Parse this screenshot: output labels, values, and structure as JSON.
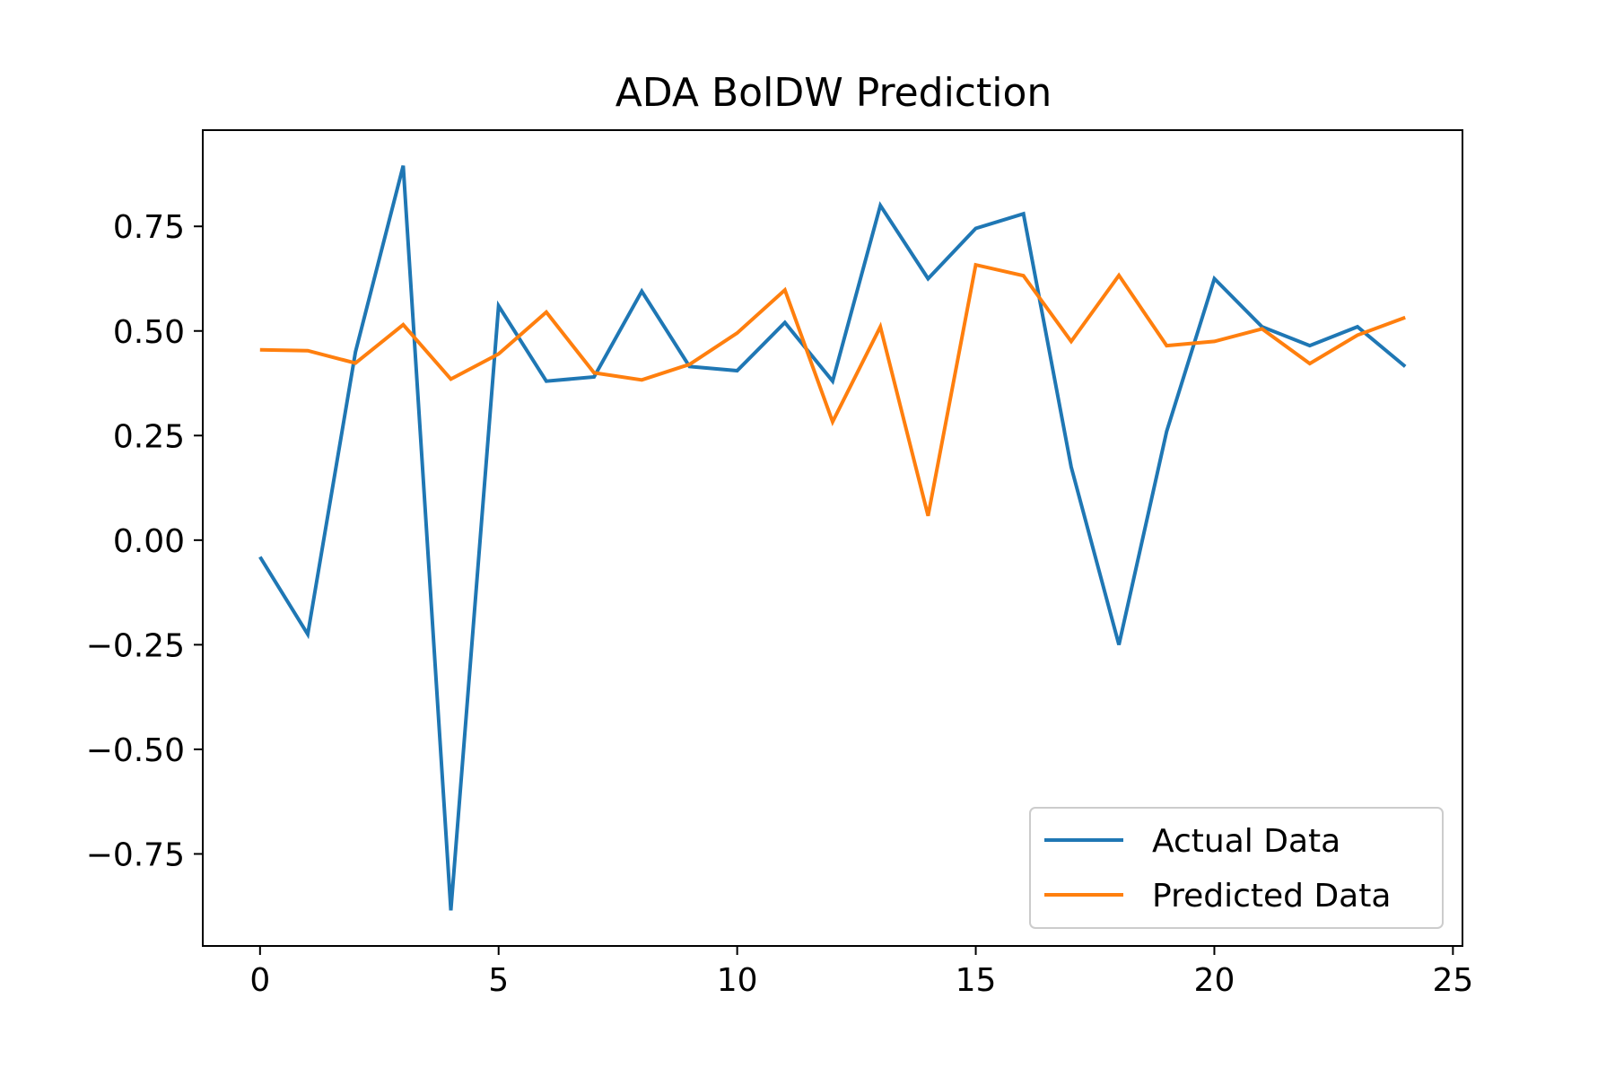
{
  "chart_data": {
    "type": "line",
    "title": "ADA BolDW Prediction",
    "xlabel": "",
    "ylabel": "",
    "xlim": [
      -1.2,
      25.2
    ],
    "ylim": [
      -0.97,
      0.98
    ],
    "x_ticks": [
      0,
      5,
      10,
      15,
      20,
      25
    ],
    "x_tick_labels": [
      "0",
      "5",
      "10",
      "15",
      "20",
      "25"
    ],
    "y_ticks": [
      0.75,
      0.5,
      0.25,
      0.0,
      -0.25,
      -0.5,
      -0.75
    ],
    "y_tick_labels": [
      "0.75",
      "0.50",
      "0.25",
      "0.00",
      "−0.25",
      "−0.50",
      "−0.75"
    ],
    "grid": false,
    "legend_position": "lower-right",
    "x": [
      0,
      1,
      2,
      3,
      4,
      5,
      6,
      7,
      8,
      9,
      10,
      11,
      12,
      13,
      14,
      15,
      16,
      17,
      18,
      19,
      20,
      21,
      22,
      23,
      24
    ],
    "series": [
      {
        "name": "Actual Data",
        "color": "#1f77b4",
        "values": [
          -0.04,
          -0.225,
          0.45,
          0.895,
          -0.885,
          0.56,
          0.38,
          0.39,
          0.595,
          0.415,
          0.405,
          0.52,
          0.38,
          0.8,
          0.625,
          0.745,
          0.78,
          0.175,
          -0.25,
          0.26,
          0.625,
          0.51,
          0.465,
          0.51,
          0.415
        ]
      },
      {
        "name": "Predicted Data",
        "color": "#ff7f0e",
        "values": [
          0.455,
          0.453,
          0.423,
          0.515,
          0.385,
          0.445,
          0.545,
          0.4,
          0.383,
          0.42,
          0.495,
          0.598,
          0.283,
          0.51,
          0.058,
          0.658,
          0.632,
          0.475,
          0.633,
          0.465,
          0.475,
          0.505,
          0.422,
          0.49,
          0.532
        ]
      }
    ]
  }
}
